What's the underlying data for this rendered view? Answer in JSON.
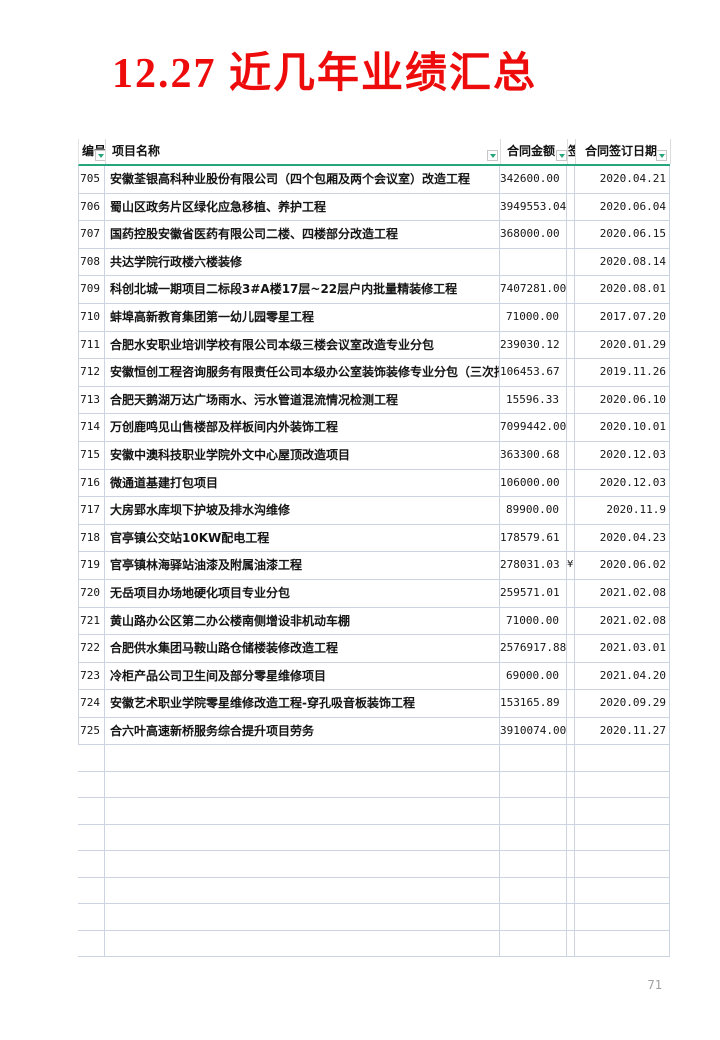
{
  "title": "12.27  近几年业绩汇总",
  "page_number": "71",
  "colors": {
    "title_red": "#ee0b0b",
    "header_underline_green": "#27a57c",
    "filter_arrow_green": "#1fa477",
    "gridline": "#ccd3e1"
  },
  "table": {
    "headers": {
      "num": "编号",
      "name": "项目名称",
      "amount": "合同金额",
      "hidden_fragment": "签",
      "date": "合同签订日期"
    },
    "rows": [
      {
        "num": "705",
        "name": "安徽荃银高科种业股份有限公司（四个包厢及两个会议室）改造工程",
        "amount": "342600.00",
        "note": "",
        "date": "2020.04.21"
      },
      {
        "num": "706",
        "name": "蜀山区政务片区绿化应急移植、养护工程",
        "amount": "3949553.04",
        "note": "",
        "date": "2020.06.04"
      },
      {
        "num": "707",
        "name": "国药控股安徽省医药有限公司二楼、四楼部分改造工程",
        "amount": "368000.00",
        "note": "",
        "date": "2020.06.15"
      },
      {
        "num": "708",
        "name": "共达学院行政楼六楼装修",
        "amount": "",
        "note": "",
        "date": "2020.08.14"
      },
      {
        "num": "709",
        "name": "科创北城一期项目二标段3#A楼17层~22层户内批量精装修工程",
        "amount": "7407281.00",
        "note": "",
        "date": "2020.08.01"
      },
      {
        "num": "710",
        "name": "蚌埠高新教育集团第一幼儿园零星工程",
        "amount": "71000.00",
        "note": "",
        "date": "2017.07.20"
      },
      {
        "num": "711",
        "name": "合肥水安职业培训学校有限公司本级三楼会议室改造专业分包",
        "amount": "239030.12",
        "note": "",
        "date": "2020.01.29"
      },
      {
        "num": "712",
        "name": "安徽恒创工程咨询服务有限责任公司本级办公室装饰装修专业分包（三次招标）",
        "amount": "106453.67",
        "note": "",
        "date": "2019.11.26"
      },
      {
        "num": "713",
        "name": "合肥天鹅湖万达广场雨水、污水管道混流情况检测工程",
        "amount": "15596.33",
        "note": "",
        "date": "2020.06.10"
      },
      {
        "num": "714",
        "name": "万创鹿鸣见山售楼部及样板间内外装饰工程",
        "amount": "7099442.00",
        "note": "",
        "date": "2020.10.01"
      },
      {
        "num": "715",
        "name": "安徽中澳科技职业学院外文中心屋顶改造项目",
        "amount": "363300.68",
        "note": "",
        "date": "2020.12.03"
      },
      {
        "num": "716",
        "name": "微通道基建打包项目",
        "amount": "106000.00",
        "note": "",
        "date": "2020.12.03"
      },
      {
        "num": "717",
        "name": "大房郢水库坝下护坡及排水沟维修",
        "amount": "89900.00",
        "note": "",
        "date": "2020.11.9"
      },
      {
        "num": "718",
        "name": "官亭镇公交站10KW配电工程",
        "amount": "178579.61",
        "note": "",
        "date": "2020.04.23"
      },
      {
        "num": "719",
        "name": "官亭镇林海驿站油漆及附属油漆工程",
        "amount": "278031.03",
        "note": "¥",
        "date": "2020.06.02"
      },
      {
        "num": "720",
        "name": "无岳项目办场地硬化项目专业分包",
        "amount": "259571.01",
        "note": "",
        "date": "2021.02.08"
      },
      {
        "num": "721",
        "name": "黄山路办公区第二办公楼南侧增设非机动车棚",
        "amount": "71000.00",
        "note": "",
        "date": "2021.02.08"
      },
      {
        "num": "722",
        "name": "合肥供水集团马鞍山路仓储楼装修改造工程",
        "amount": "2576917.88",
        "note": "",
        "date": "2021.03.01"
      },
      {
        "num": "723",
        "name": "冷柜产品公司卫生间及部分零星维修项目",
        "amount": "69000.00",
        "note": "",
        "date": "2021.04.20"
      },
      {
        "num": "724",
        "name": "安徽艺术职业学院零星维修改造工程-穿孔吸音板装饰工程",
        "amount": "153165.89",
        "note": "",
        "date": "2020.09.29"
      },
      {
        "num": "725",
        "name": "合六叶高速新桥服务综合提升项目劳务",
        "amount": "3910074.00",
        "note": "",
        "date": "2020.11.27"
      }
    ],
    "empty_row_count": 8
  }
}
